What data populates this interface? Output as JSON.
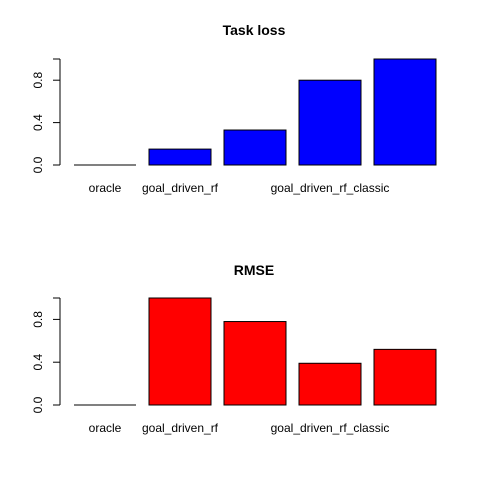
{
  "chart_data": [
    {
      "type": "bar",
      "title": "Task loss",
      "categories": [
        "oracle",
        "goal_driven_rf",
        "",
        "goal_driven_rf_classic",
        ""
      ],
      "values": [
        0.0,
        0.15,
        0.33,
        0.8,
        1.0
      ],
      "yticks": [
        "0.0",
        "0.4",
        "0.8"
      ],
      "ylim": [
        0,
        1.0
      ],
      "color": "#0000ff",
      "xlabel": "",
      "ylabel": "",
      "grid": false
    },
    {
      "type": "bar",
      "title": "RMSE",
      "categories": [
        "oracle",
        "goal_driven_rf",
        "",
        "goal_driven_rf_classic",
        ""
      ],
      "values": [
        0.0,
        1.0,
        0.78,
        0.39,
        0.52
      ],
      "yticks": [
        "0.0",
        "0.4",
        "0.8"
      ],
      "ylim": [
        0,
        1.0
      ],
      "color": "#ff0000",
      "xlabel": "",
      "ylabel": "",
      "grid": false
    }
  ]
}
